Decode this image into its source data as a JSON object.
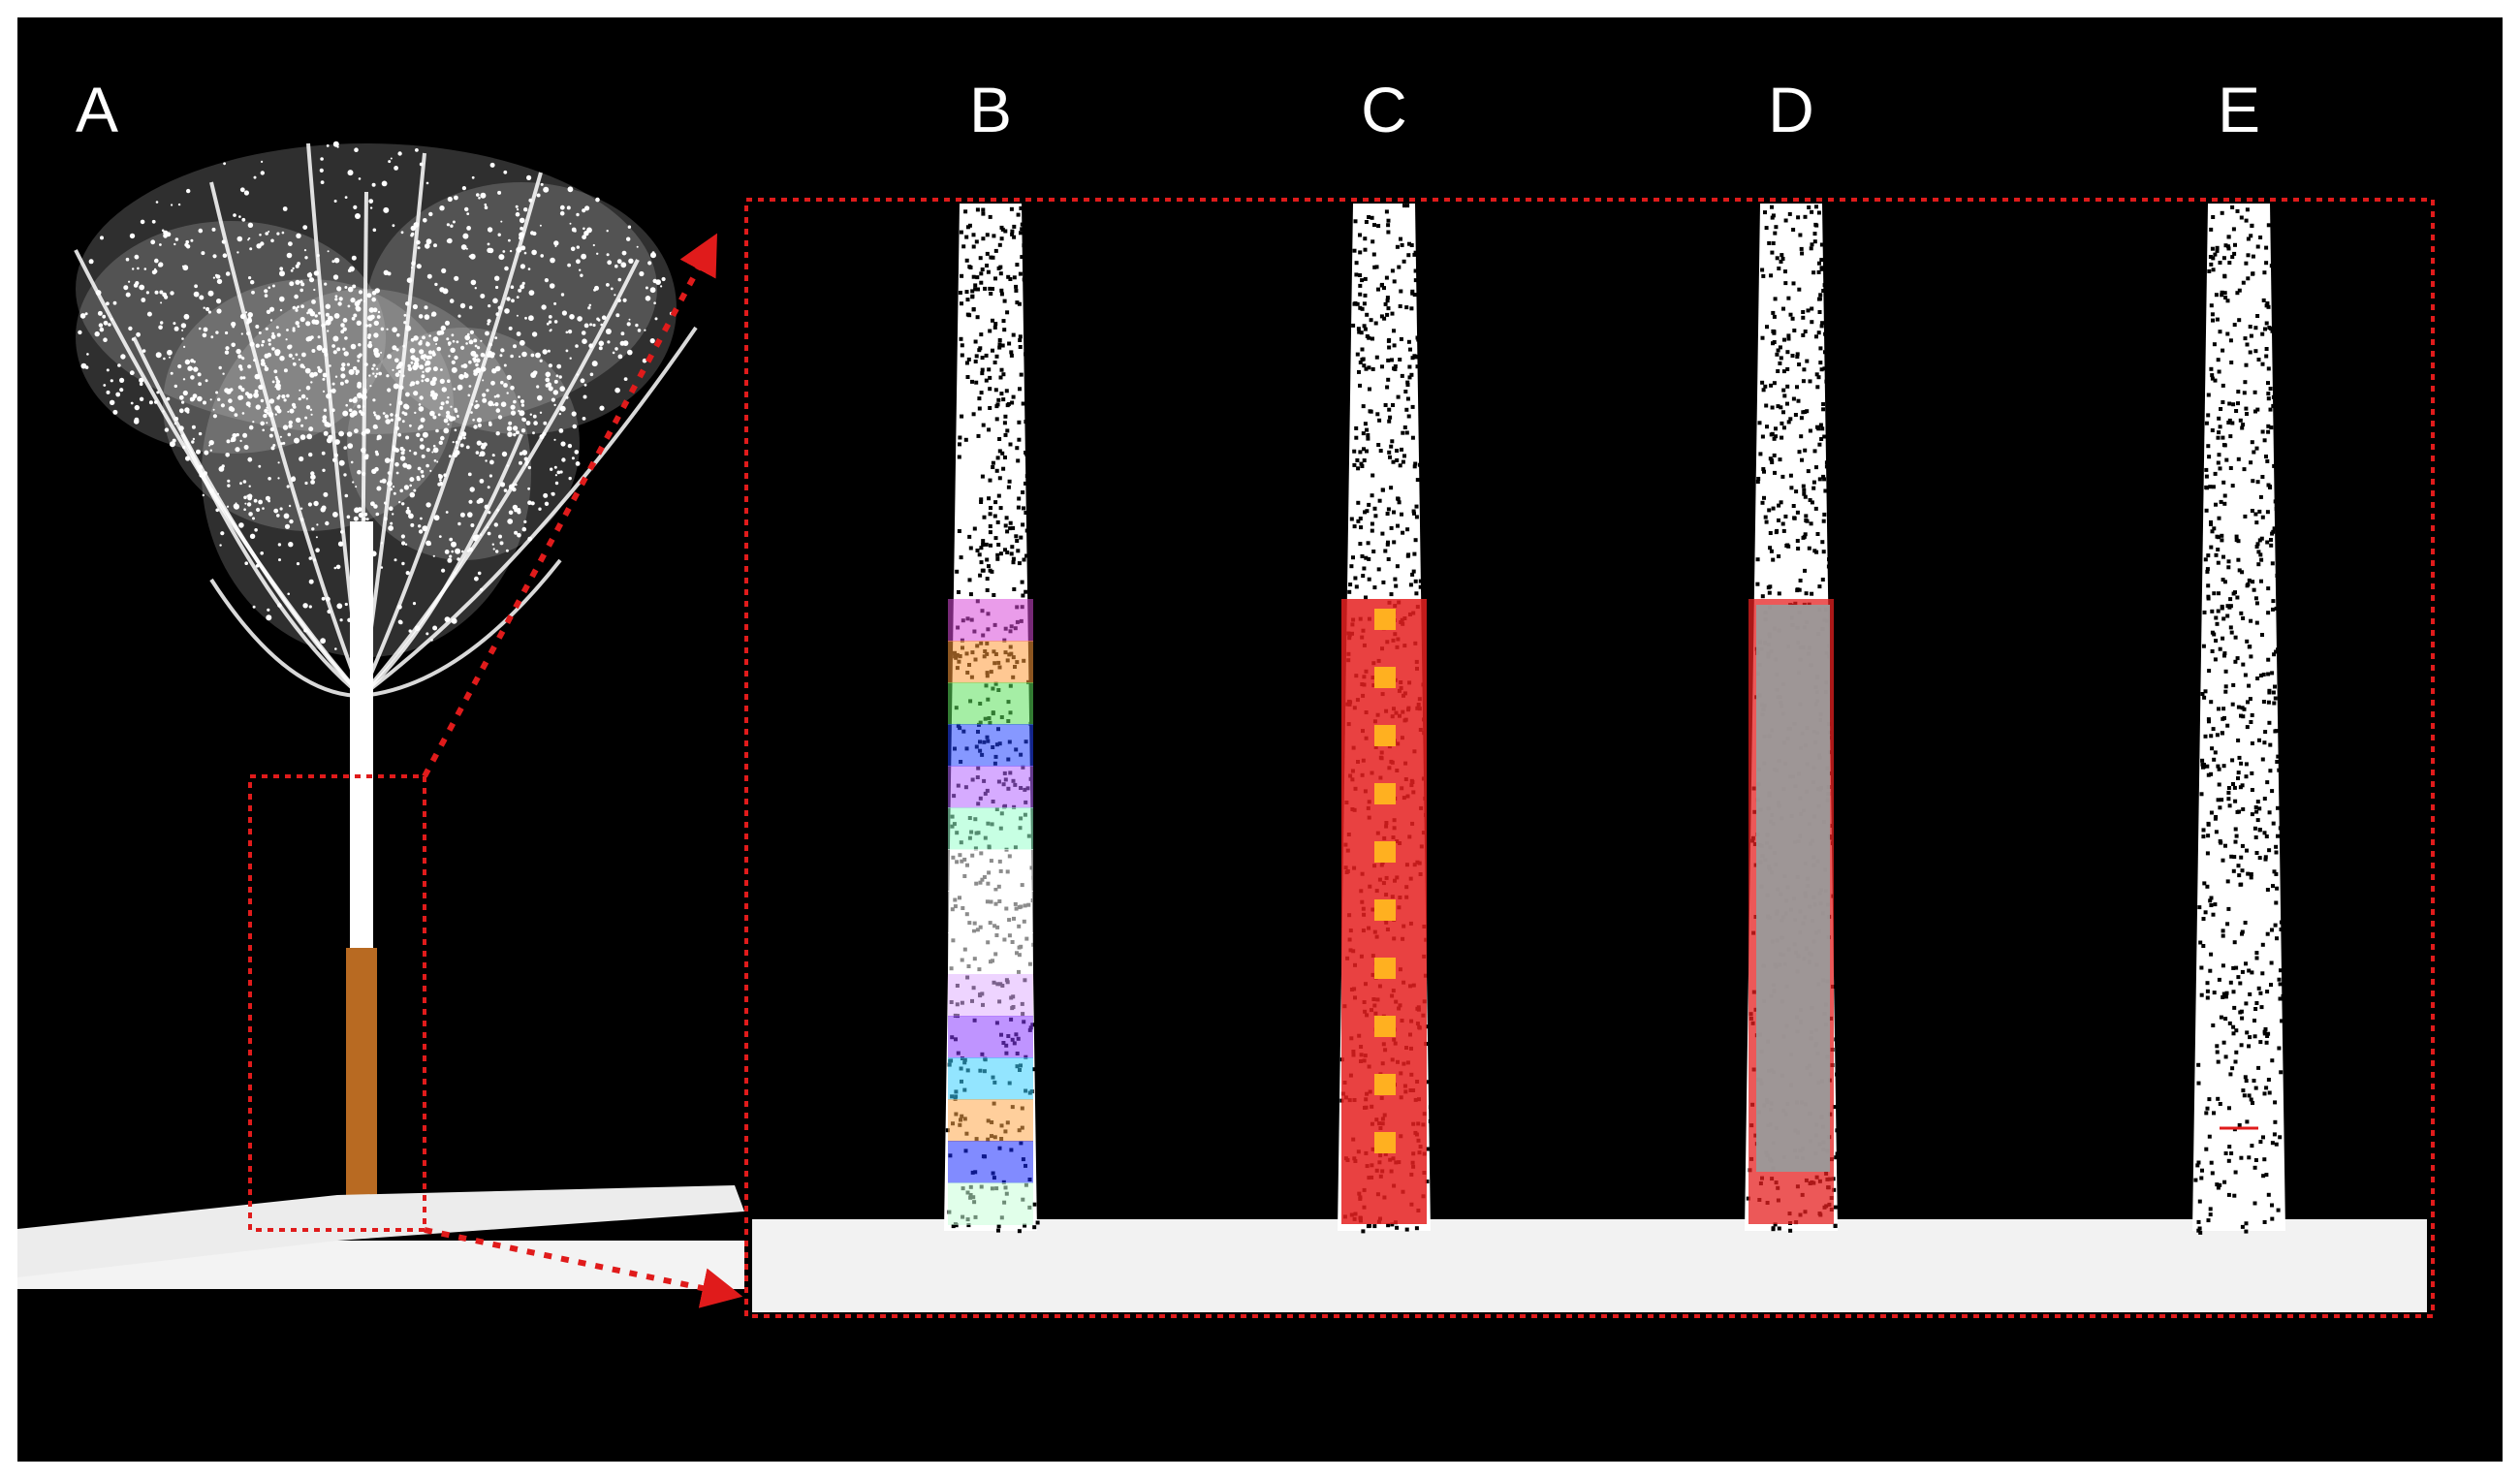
{
  "figure": {
    "background": "#000000",
    "outline_color": "#e01b1b",
    "panels": [
      {
        "label": "A"
      },
      {
        "label": "B"
      },
      {
        "label": "C"
      },
      {
        "label": "D"
      },
      {
        "label": "E"
      }
    ]
  }
}
